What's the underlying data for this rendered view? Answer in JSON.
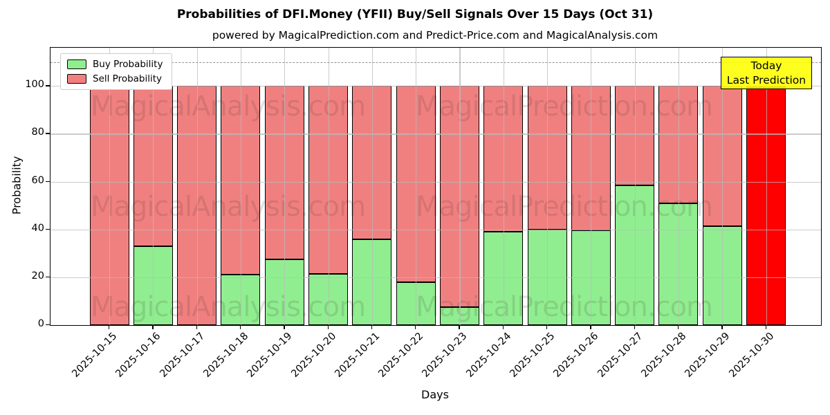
{
  "title": "Probabilities of DFI.Money (YFII) Buy/Sell Signals Over 15 Days (Oct 31)",
  "subtitle": "powered by MagicalPrediction.com and Predict-Price.com and MagicalAnalysis.com",
  "legend": [
    {
      "label": "Buy Probability",
      "color": "#90EE90"
    },
    {
      "label": "Sell Probability",
      "color": "#F08080"
    }
  ],
  "annotation": {
    "line1": "Today",
    "line2": "Last Prediction",
    "bg_color": "#FFFF00",
    "border_color": "#000000"
  },
  "watermarks": {
    "left_text": "MagicalAnalysis.com",
    "right_text": "MagicalPrediction.com"
  },
  "chart_data": {
    "type": "bar",
    "stacked": true,
    "title": "Probabilities of DFI.Money (YFII) Buy/Sell Signals Over 15 Days (Oct 31)",
    "subtitle": "powered by MagicalPrediction.com and Predict-Price.com and MagicalAnalysis.com",
    "xlabel": "Days",
    "ylabel": "Probability",
    "ylim": [
      0,
      116
    ],
    "yticks": [
      0,
      20,
      40,
      60,
      80,
      100
    ],
    "dashed_hline": 110,
    "grid": true,
    "legend_position": "upper left",
    "categories": [
      "2025-10-15",
      "2025-10-16",
      "2025-10-17",
      "2025-10-18",
      "2025-10-19",
      "2025-10-20",
      "2025-10-21",
      "2025-10-22",
      "2025-10-23",
      "2025-10-24",
      "2025-10-25",
      "2025-10-26",
      "2025-10-27",
      "2025-10-28",
      "2025-10-29",
      "2025-10-30"
    ],
    "series": [
      {
        "name": "Buy Probability",
        "color": "#90EE90",
        "values": [
          0,
          33,
          0,
          21,
          27.5,
          21.5,
          36,
          18,
          7.5,
          39,
          40,
          39.5,
          58.5,
          51,
          41.5,
          0
        ]
      },
      {
        "name": "Sell Probability",
        "color": "#F08080",
        "values": [
          100,
          67,
          100,
          79,
          72.5,
          78.5,
          64,
          82,
          92.5,
          61,
          60,
          60.5,
          41.5,
          49,
          58.5,
          100
        ]
      }
    ],
    "today_index": 15,
    "today_color": "#FF0000"
  }
}
